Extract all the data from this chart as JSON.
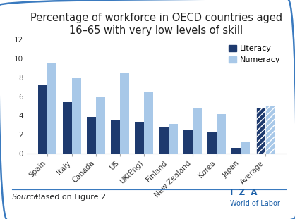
{
  "title": "Percentage of workforce in OECD countries aged\n16–65 with very low levels of skill",
  "categories": [
    "Spain",
    "Italy",
    "Canada",
    "US",
    "UK(Eng)",
    "Finland",
    "New Zealand",
    "Korea",
    "Japan",
    "Average"
  ],
  "literacy": [
    7.2,
    5.4,
    3.8,
    3.5,
    3.3,
    2.7,
    2.5,
    2.2,
    0.6,
    4.8
  ],
  "numeracy": [
    9.5,
    7.9,
    5.9,
    8.5,
    6.5,
    3.1,
    4.7,
    4.1,
    1.2,
    5.0
  ],
  "literacy_color": "#1e3a6e",
  "numeracy_color": "#a8c8e8",
  "ylim": [
    0,
    12
  ],
  "yticks": [
    0,
    2,
    4,
    6,
    8,
    10,
    12
  ],
  "source_text_italic": "Source",
  "source_text_normal": ": Based on Figure 2.",
  "legend_literacy": "Literacy",
  "legend_numeracy": "Numeracy",
  "iza_text": "I  Z  A",
  "wol_text": "World of Labor",
  "border_color": "#3a7abf",
  "title_fontsize": 10.5,
  "tick_fontsize": 7.5,
  "source_fontsize": 8,
  "iza_fontsize": 8.5,
  "bar_width": 0.38
}
